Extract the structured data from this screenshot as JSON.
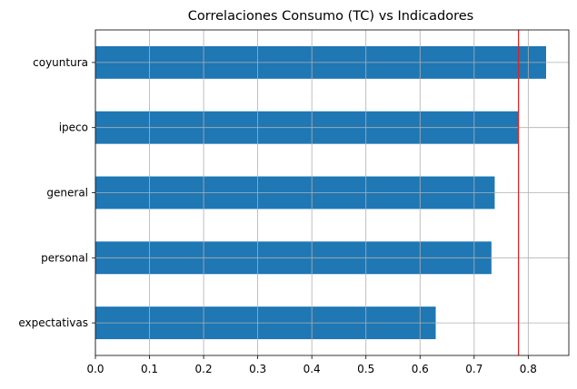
{
  "chart_data": {
    "type": "bar",
    "orientation": "horizontal",
    "title": "Correlaciones Consumo (TC) vs Indicadores",
    "xlabel": "",
    "ylabel": "",
    "categories": [
      "coyuntura",
      "ipeco",
      "general",
      "personal",
      "expectativas"
    ],
    "values": [
      0.833,
      0.782,
      0.738,
      0.732,
      0.629
    ],
    "xlim": [
      0.0,
      0.875
    ],
    "xticks": [
      "0.0",
      "0.1",
      "0.2",
      "0.3",
      "0.4",
      "0.5",
      "0.6",
      "0.7",
      "0.8"
    ],
    "grid": true,
    "reference_line": {
      "orientation": "vertical",
      "x": 0.782,
      "color": "#d62728"
    },
    "colors": {
      "bar": "#1f77b4",
      "grid": "#b0b0b0",
      "axis": "#000000"
    }
  }
}
